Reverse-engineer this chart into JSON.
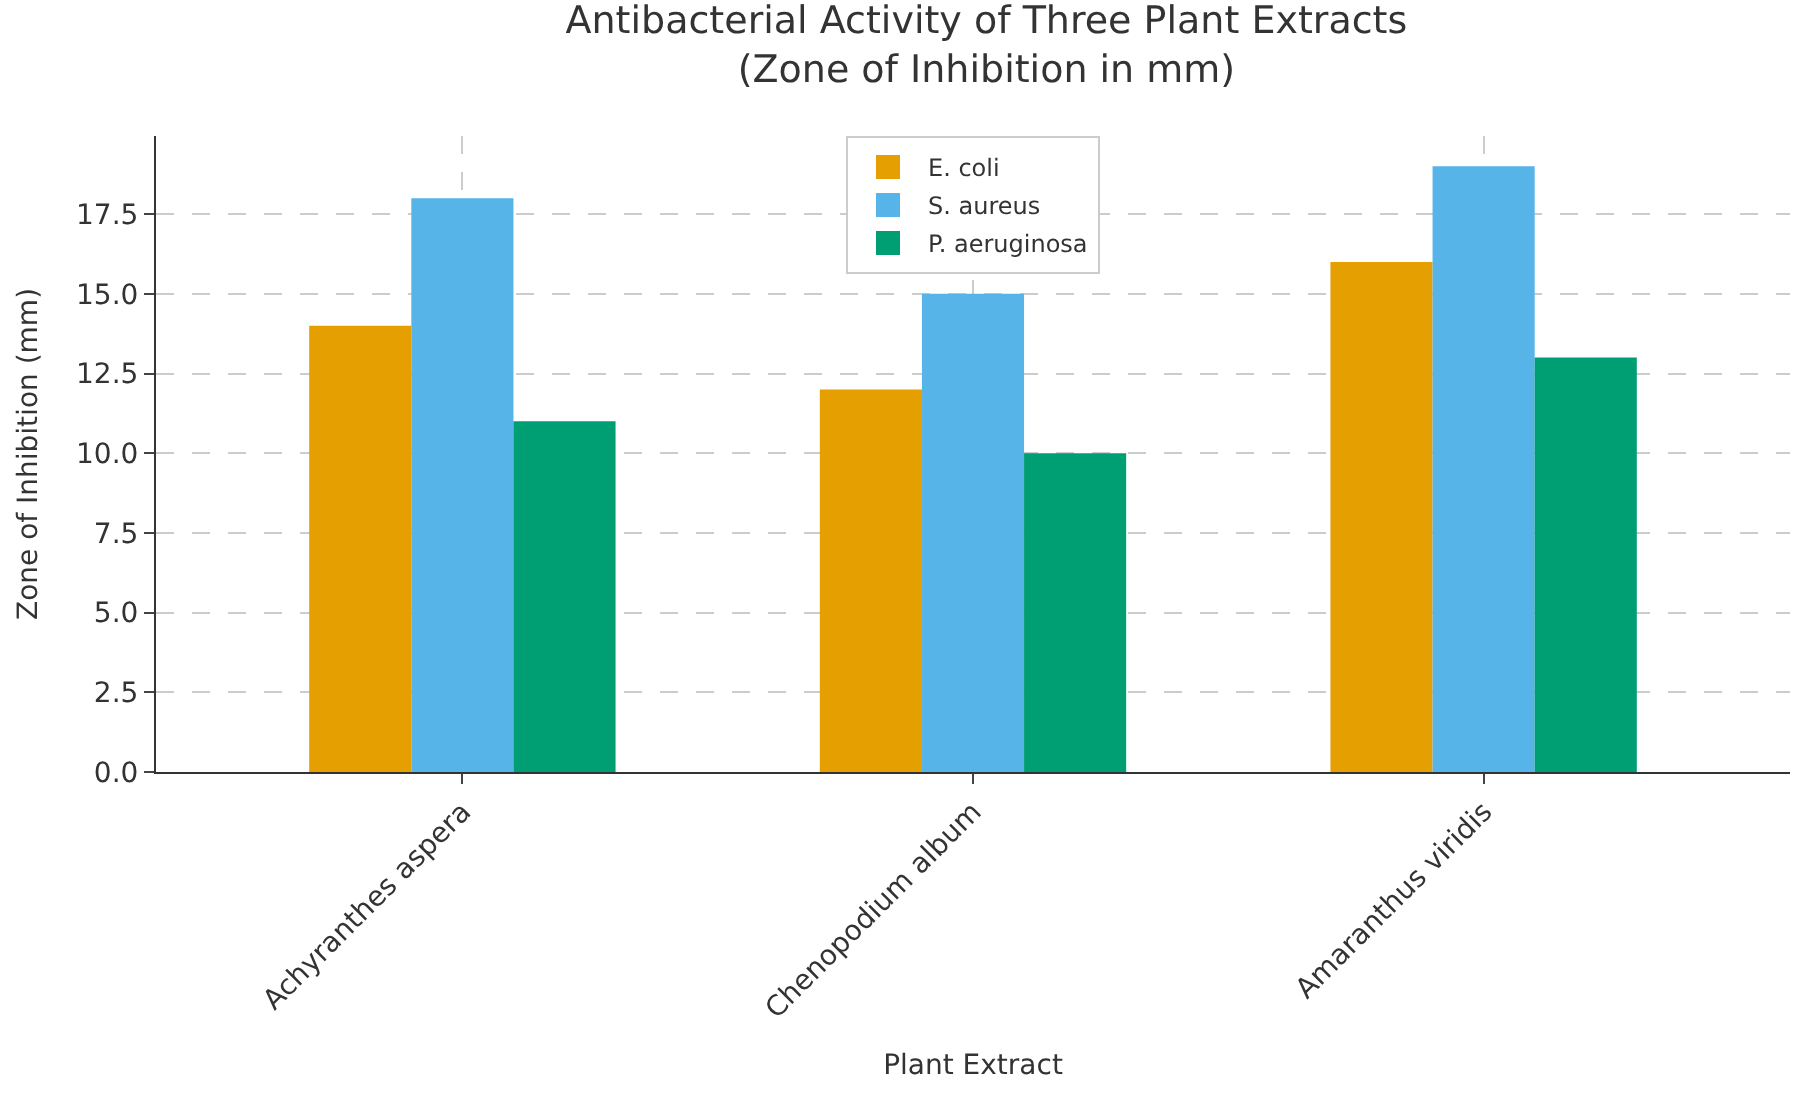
{
  "chart_data": {
    "type": "bar",
    "title": "Antibacterial Activity of Three Plant Extracts\n(Zone of Inhibition in mm)",
    "xlabel": "Plant Extract",
    "ylabel": "Zone of Inhibition (mm)",
    "categories": [
      "Achyranthes aspera",
      "Chenopodium album",
      "Amaranthus viridis"
    ],
    "series": [
      {
        "name": "E. coli",
        "color": "#e69f00",
        "values": [
          14,
          12,
          16
        ]
      },
      {
        "name": "S. aureus",
        "color": "#56b4e9",
        "values": [
          18,
          15,
          19
        ]
      },
      {
        "name": "P. aeruginosa",
        "color": "#009e73",
        "values": [
          11,
          10,
          13
        ]
      }
    ],
    "ylim": [
      0,
      19.95
    ],
    "yticks": [
      {
        "value": 0,
        "label": "0.0"
      },
      {
        "value": 2.5,
        "label": "2.5"
      },
      {
        "value": 5,
        "label": "5.0"
      },
      {
        "value": 7.5,
        "label": "7.5"
      },
      {
        "value": 10,
        "label": "10.0"
      },
      {
        "value": 12.5,
        "label": "12.5"
      },
      {
        "value": 15,
        "label": "15.0"
      },
      {
        "value": 17.5,
        "label": "17.5"
      }
    ],
    "grid": true,
    "legend": "top"
  }
}
